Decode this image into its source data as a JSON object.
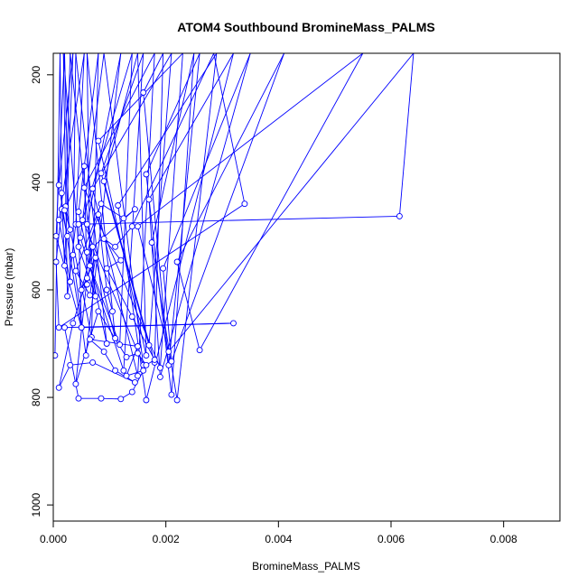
{
  "chart_data": {
    "type": "line",
    "title": "ATOM4 Southbound BromineMass_PALMS",
    "xlabel": "BromineMass_PALMS",
    "ylabel": "Pressure (mbar)",
    "xlim": [
      0,
      0.009
    ],
    "ylim": [
      1030,
      160
    ],
    "y_reversed": true,
    "grid": false,
    "xticks": [
      0,
      0.002,
      0.004,
      0.006,
      0.008
    ],
    "xtick_labels": [
      "0.000",
      "0.002",
      "0.004",
      "0.006",
      "0.008"
    ],
    "yticks": [
      200,
      400,
      600,
      800,
      1000
    ],
    "ytick_labels": [
      "200",
      "400",
      "600",
      "800",
      "1000"
    ],
    "series": [
      {
        "color": "#0000ff",
        "marker": "open-circle",
        "points": [
          [
            3e-05,
            722
          ],
          [
            0.00012,
            160
          ],
          [
            0.00015,
            420
          ],
          [
            0.0002,
            555
          ],
          [
            0.00035,
            160
          ],
          [
            0.0001,
            405
          ],
          [
            0.0005,
            670
          ],
          [
            5e-05,
            500
          ],
          [
            0.0002,
            160
          ],
          [
            0.0003,
            585
          ],
          [
            0.0001,
            470
          ],
          [
            0.00055,
            160
          ],
          [
            0.0004,
            478
          ],
          [
            0.00025,
            612
          ],
          [
            0.00018,
            160
          ],
          [
            0.00045,
            520
          ],
          [
            0.00075,
            612
          ],
          [
            0.0003,
            160
          ],
          [
            0.00022,
            445
          ],
          [
            0.00068,
            688
          ],
          [
            0.0008,
            160
          ],
          [
            0.00045,
            455
          ],
          [
            0.00095,
            700
          ],
          [
            0.0004,
            160
          ],
          [
            0.00035,
            535
          ],
          [
            0.00058,
            722
          ],
          [
            0.0012,
            160
          ],
          [
            0.0006,
            478
          ],
          [
            0.0011,
            690
          ],
          [
            0.0006,
            160
          ],
          [
            0.00065,
            555
          ],
          [
            0.00118,
            702
          ],
          [
            0.0014,
            160
          ],
          [
            0.00052,
            470
          ],
          [
            0.0016,
            740
          ],
          [
            0.0009,
            160
          ],
          [
            0.00048,
            503
          ],
          [
            0.00125,
            750
          ],
          [
            0.0016,
            160
          ],
          [
            0.00085,
            383
          ],
          [
            0.0017,
            703
          ],
          [
            0.0021,
            160
          ],
          [
            0.0007,
            412
          ],
          [
            0.0015,
            760
          ],
          [
            0.0018,
            160
          ],
          [
            0.00055,
            410
          ],
          [
            0.0019,
            745
          ],
          [
            0.0023,
            160
          ],
          [
            0.0008,
            323
          ],
          [
            0.00165,
            722
          ],
          [
            0.0015,
            160
          ],
          [
            0.0009,
            398
          ],
          [
            0.0018,
            735
          ],
          [
            0.00195,
            160
          ],
          [
            0.0016,
            233
          ],
          [
            0.00205,
            740
          ],
          [
            0.0026,
            160
          ],
          [
            0.00165,
            385
          ],
          [
            0.0021,
            795
          ],
          [
            0.0025,
            160
          ],
          [
            0.00175,
            512
          ],
          [
            0.0022,
            805
          ],
          [
            0.0029,
            160
          ],
          [
            0.00115,
            443
          ],
          [
            0.00165,
            805
          ],
          [
            0.0032,
            160
          ],
          [
            0.0017,
            432
          ],
          [
            0.0019,
            762
          ],
          [
            0.0035,
            160
          ],
          [
            0.00195,
            560
          ],
          [
            0.0021,
            733
          ],
          [
            0.0041,
            160
          ],
          [
            0.0022,
            548
          ],
          [
            0.0026,
            712
          ],
          [
            0.0055,
            160
          ],
          [
            0.0015,
            482
          ],
          [
            0.00205,
            715
          ],
          [
            0.0064,
            160
          ],
          [
            0.00615,
            463
          ],
          [
            0.00045,
            478
          ],
          [
            0.0005,
            670
          ],
          [
            0.0032,
            662
          ],
          [
            0.0002,
            670
          ],
          [
            0.00045,
            802
          ],
          [
            0.00085,
            802
          ],
          [
            0.0012,
            803
          ],
          [
            0.0014,
            790
          ],
          [
            0.0016,
            750
          ],
          [
            0.0013,
            760
          ],
          [
            0.0015,
            705
          ],
          [
            0.00065,
            692
          ],
          [
            0.0009,
            715
          ],
          [
            0.0011,
            750
          ],
          [
            0.00145,
            772
          ],
          [
            0.0007,
            735
          ],
          [
            0.0003,
            740
          ],
          [
            0.0001,
            782
          ],
          [
            0.00035,
            662
          ],
          [
            0.0006,
            578
          ],
          [
            0.0004,
            775
          ],
          [
            0.0008,
            640
          ],
          [
            0.0013,
            725
          ],
          [
            0.0015,
            718
          ],
          [
            0.00165,
            740
          ],
          [
            0.0018,
            730
          ],
          [
            0.0014,
            650
          ],
          [
            0.00095,
            560
          ],
          [
            0.0012,
            545
          ],
          [
            0.0009,
            505
          ],
          [
            0.0011,
            520
          ],
          [
            0.0014,
            482
          ],
          [
            0.00285,
            160
          ],
          [
            0.0034,
            440
          ],
          [
            0.0001,
            670
          ],
          [
            5e-05,
            548
          ],
          [
            0.00015,
            450
          ],
          [
            0.00025,
            500
          ],
          [
            0.0003,
            488
          ],
          [
            0.0002,
            452
          ],
          [
            0.00055,
            370
          ],
          [
            0.0006,
            590
          ],
          [
            0.0007,
            520
          ],
          [
            0.0005,
            600
          ],
          [
            0.00075,
            540
          ],
          [
            0.00065,
            610
          ],
          [
            0.0004,
            565
          ],
          [
            0.00085,
            440
          ],
          [
            0.00125,
            467
          ],
          [
            0.00145,
            450
          ],
          [
            0.0006,
            530
          ],
          [
            0.0008,
            460
          ],
          [
            0.00095,
            600
          ],
          [
            0.00105,
            640
          ]
        ]
      }
    ]
  }
}
